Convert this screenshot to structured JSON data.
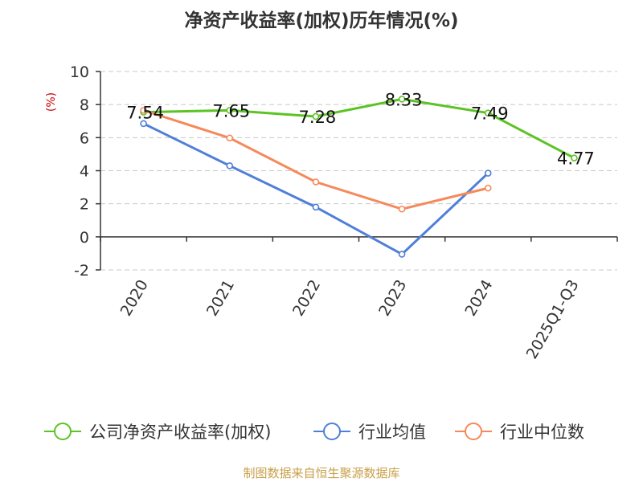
{
  "chart_data": {
    "type": "line",
    "title": "净资产收益率(加权)历年情况(%)",
    "ylabel": "(%)",
    "xlabel": "",
    "categories": [
      "2020",
      "2021",
      "2022",
      "2023",
      "2024",
      "2025Q1-Q3"
    ],
    "ylim": [
      -2,
      10
    ],
    "yticks": [
      -2,
      0,
      2,
      4,
      6,
      8,
      10
    ],
    "grid": true,
    "legend_position": "bottom",
    "series": [
      {
        "name": "公司净资产收益率(加权)",
        "color": "#5cc324",
        "values": [
          7.54,
          7.65,
          7.28,
          8.33,
          7.49,
          4.77
        ],
        "labels": [
          "7.54",
          "7.65",
          "7.28",
          "8.33",
          "7.49",
          "4.77"
        ]
      },
      {
        "name": "行业均值",
        "color": "#4f7fd8",
        "values": [
          6.85,
          4.3,
          1.8,
          -1.05,
          3.85,
          null
        ]
      },
      {
        "name": "行业中位数",
        "color": "#f5895a",
        "values": [
          7.65,
          5.98,
          3.32,
          1.68,
          2.95,
          null
        ]
      }
    ]
  },
  "source": "制图数据来自恒生聚源数据库"
}
